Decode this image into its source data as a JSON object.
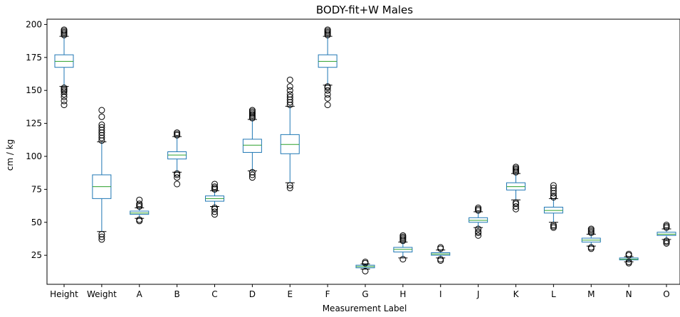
{
  "chart_data": {
    "type": "box",
    "title": "BODY-fit+W Males",
    "xlabel": "Measurement Label",
    "ylabel": "cm / kg",
    "ylim": [
      3,
      204
    ],
    "yticks": [
      25,
      50,
      75,
      100,
      125,
      150,
      175,
      200
    ],
    "grid": false,
    "colors": {
      "box": "#1f77b4",
      "median": "#2ca02c",
      "flier": "#000000"
    },
    "categories": [
      "Height",
      "Weight",
      "A",
      "B",
      "C",
      "D",
      "E",
      "F",
      "G",
      "H",
      "I",
      "J",
      "K",
      "L",
      "M",
      "N",
      "O"
    ],
    "boxes": [
      {
        "label": "Height",
        "q1": 167.5,
        "median": 172,
        "q3": 177,
        "whislo": 153,
        "whishi": 191,
        "fliers": [
          139,
          142,
          145,
          147,
          149,
          150,
          151,
          152,
          192,
          193,
          194,
          195,
          196
        ]
      },
      {
        "label": "Weight",
        "q1": 68,
        "median": 77,
        "q3": 86,
        "whislo": 43,
        "whishi": 111,
        "fliers": [
          37,
          39,
          41,
          112,
          114,
          116,
          118,
          120,
          122,
          124,
          130,
          135
        ]
      },
      {
        "label": "A",
        "q1": 56,
        "median": 57,
        "q3": 58.5,
        "whislo": 53,
        "whishi": 61,
        "fliers": [
          51,
          52,
          62,
          63,
          64,
          67
        ]
      },
      {
        "label": "B",
        "q1": 98,
        "median": 101,
        "q3": 103.5,
        "whislo": 88,
        "whishi": 115,
        "fliers": [
          79,
          84,
          86,
          87,
          116,
          117,
          118
        ]
      },
      {
        "label": "C",
        "q1": 66,
        "median": 68,
        "q3": 70,
        "whislo": 62,
        "whishi": 74,
        "fliers": [
          56,
          58,
          60,
          61,
          75,
          76,
          77,
          79
        ]
      },
      {
        "label": "D",
        "q1": 103,
        "median": 108.5,
        "q3": 113,
        "whislo": 89,
        "whishi": 128,
        "fliers": [
          84,
          86,
          88,
          129,
          130,
          131,
          132,
          133,
          134,
          135
        ]
      },
      {
        "label": "E",
        "q1": 102,
        "median": 109,
        "q3": 116.5,
        "whislo": 80,
        "whishi": 138,
        "fliers": [
          76,
          78,
          139,
          141,
          143,
          145,
          147,
          150,
          153,
          158
        ]
      },
      {
        "label": "F",
        "q1": 167.5,
        "median": 172,
        "q3": 177,
        "whislo": 154,
        "whishi": 191,
        "fliers": [
          139,
          144,
          147,
          150,
          152,
          153,
          192,
          193,
          194,
          195,
          196
        ]
      },
      {
        "label": "G",
        "q1": 15.5,
        "median": 16.5,
        "q3": 17.5,
        "whislo": 14.5,
        "whishi": 18.5,
        "fliers": [
          13,
          19,
          20
        ]
      },
      {
        "label": "H",
        "q1": 27.5,
        "median": 29.5,
        "q3": 31,
        "whislo": 23,
        "whishi": 35,
        "fliers": [
          22,
          36,
          37,
          38,
          39,
          40
        ]
      },
      {
        "label": "I",
        "q1": 25,
        "median": 26,
        "q3": 27,
        "whislo": 23,
        "whishi": 29,
        "fliers": [
          21,
          22,
          30,
          31
        ]
      },
      {
        "label": "J",
        "q1": 50,
        "median": 51.5,
        "q3": 53.5,
        "whislo": 46,
        "whishi": 58,
        "fliers": [
          40,
          42,
          43,
          45,
          59,
          60,
          61
        ]
      },
      {
        "label": "K",
        "q1": 74.5,
        "median": 77,
        "q3": 80,
        "whislo": 67,
        "whishi": 87,
        "fliers": [
          60,
          62,
          64,
          65,
          88,
          89,
          90,
          91,
          92
        ]
      },
      {
        "label": "L",
        "q1": 57,
        "median": 59,
        "q3": 61.5,
        "whislo": 50,
        "whishi": 68,
        "fliers": [
          46,
          47,
          48,
          69,
          70,
          72,
          74,
          76,
          78
        ]
      },
      {
        "label": "M",
        "q1": 35,
        "median": 36.5,
        "q3": 38,
        "whislo": 32,
        "whishi": 41,
        "fliers": [
          30,
          31,
          42,
          43,
          44,
          45
        ]
      },
      {
        "label": "N",
        "q1": 21.5,
        "median": 22,
        "q3": 23,
        "whislo": 20,
        "whishi": 24,
        "fliers": [
          19,
          20,
          25,
          26
        ]
      },
      {
        "label": "O",
        "q1": 40,
        "median": 41,
        "q3": 42.5,
        "whislo": 37,
        "whishi": 45,
        "fliers": [
          34,
          35,
          36,
          46,
          47,
          48
        ]
      }
    ]
  }
}
